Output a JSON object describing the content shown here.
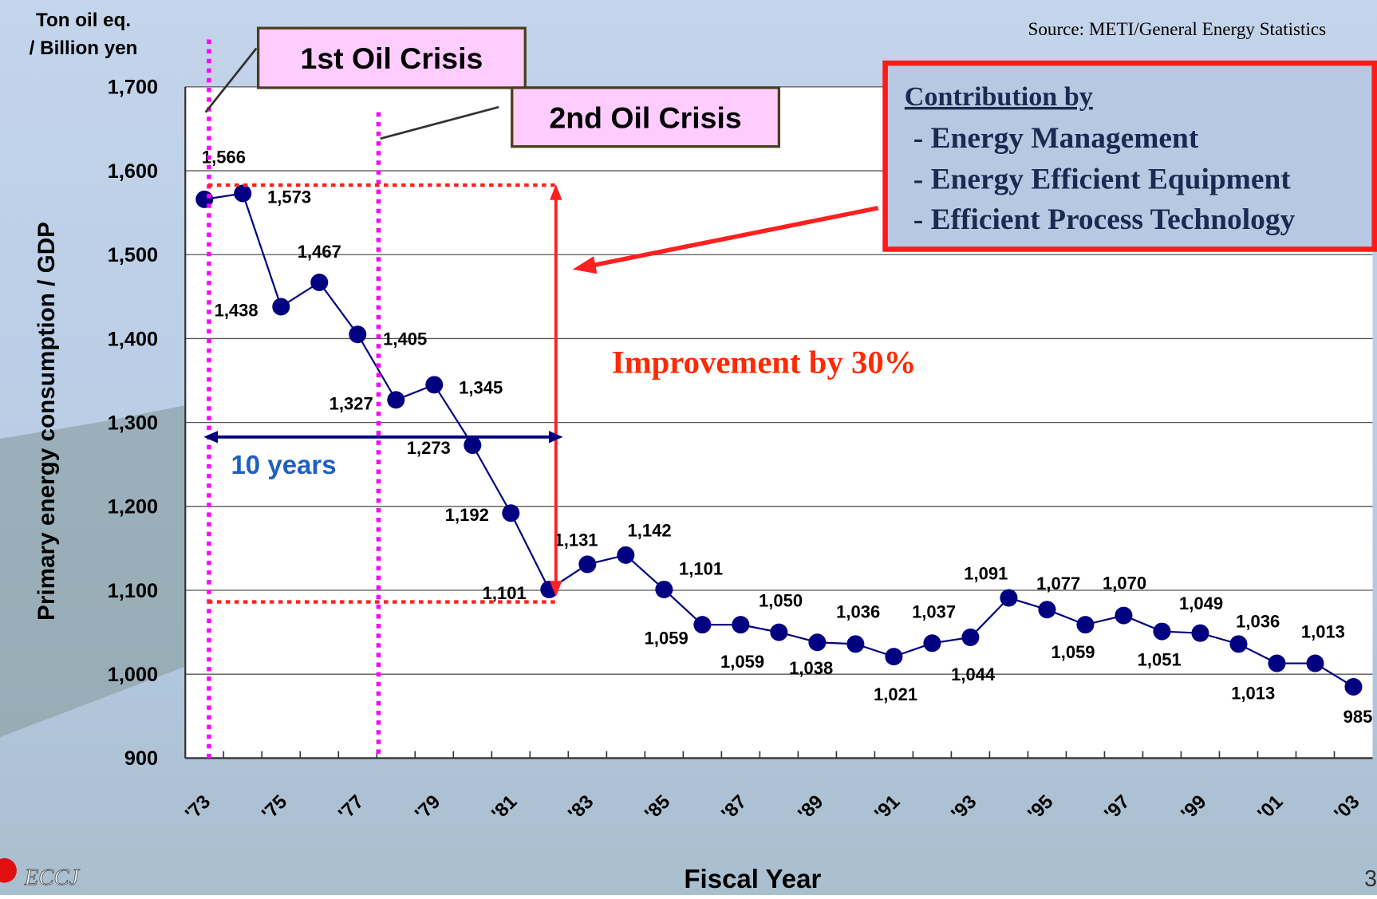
{
  "chart_data": {
    "type": "line",
    "y_unit_label": [
      "Ton oil eq.",
      "/ Billion yen"
    ],
    "ylabel": "Primary energy consumption / GDP",
    "xlabel": "Fiscal Year",
    "source": "Source: METI/General Energy Statistics",
    "categories": [
      "'73",
      null,
      "'75",
      null,
      "'77",
      null,
      "'79",
      null,
      "'81",
      null,
      "'83",
      null,
      "'85",
      null,
      "'87",
      null,
      "'89",
      null,
      "'91",
      null,
      "'93",
      null,
      "'95",
      null,
      "'97",
      null,
      "'99",
      null,
      "'01",
      null,
      "'03"
    ],
    "series": [
      {
        "name": "Primary energy consumption / GDP",
        "color": "#000080",
        "values": [
          1566,
          1573,
          1438,
          1467,
          1405,
          1327,
          1345,
          1273,
          1192,
          1101,
          1131,
          1142,
          1101,
          1059,
          1059,
          1050,
          1038,
          1036,
          1021,
          1037,
          1044,
          1091,
          1077,
          1059,
          1070,
          1051,
          1049,
          1036,
          1013,
          1013,
          985
        ],
        "value_labels": [
          "1,566",
          "1,573",
          "1,438",
          "1,467",
          "1,405",
          "1,327",
          "1,345",
          "1,273",
          "1,192",
          "1,101",
          "1,131",
          "1,142",
          "1,101",
          "1,059",
          "1,059",
          "1,050",
          "1,038",
          "1,036",
          "1,021",
          "1,037",
          "1,044",
          "1,091",
          "1,077",
          "1,059",
          "1,070",
          "1,051",
          "1,049",
          "1,036",
          "1,013",
          "1,013",
          "985"
        ]
      }
    ],
    "ylim": [
      900,
      1700
    ],
    "yticks": [
      900,
      {
        "value": 1000,
        "label": "1,000"
      },
      {
        "value": 1100,
        "label": "1,100"
      },
      {
        "value": 1200,
        "label": "1,200"
      },
      {
        "value": 1300,
        "label": "1,300"
      },
      {
        "value": 1400,
        "label": "1,400"
      },
      {
        "value": 1500,
        "label": "1,500"
      },
      {
        "value": 1600,
        "label": "1,600"
      },
      {
        "value": 1700,
        "label": "1,700"
      }
    ],
    "grid": true,
    "annotations": {
      "first_crisis": "1st Oil Crisis",
      "second_crisis": "2nd Oil Crisis",
      "improvement": "Improvement by 30%",
      "period": "10 years"
    },
    "callout": {
      "title": "Contribution by",
      "items": [
        "- Energy Management",
        "- Energy Efficient Equipment",
        "- Efficient Process Technology"
      ]
    },
    "logo": "ECCJ",
    "page_number": "3"
  }
}
